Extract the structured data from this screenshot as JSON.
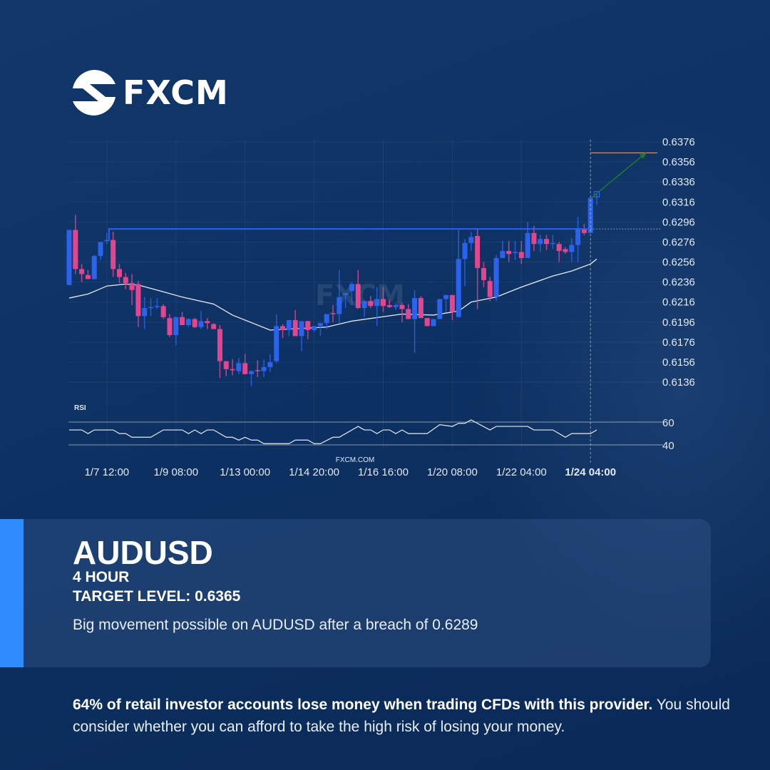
{
  "brand": {
    "name": "FXCM",
    "watermark": "FXCM",
    "site": "FXCM.COM"
  },
  "info": {
    "symbol": "AUDUSD",
    "timeframe": "4 HOUR",
    "target": "TARGET LEVEL: 0.6365",
    "description": "Big movement possible on AUDUSD after a breach of 0.6289"
  },
  "disclaimer": {
    "bold": "64% of retail investor accounts lose money when trading CFDs with this provider.",
    "rest": " You should consider whether you can afford to take the high risk of losing your money."
  },
  "colors": {
    "up": "#2b63ec",
    "down": "#e1468f",
    "breakout": "#2b63ec",
    "target": "#e8905a",
    "arrow": "#1f7a2e",
    "ma": "#e8ecf2",
    "accent": "#2f8cff"
  },
  "chart_data": {
    "type": "candlestick",
    "ylim": [
      0.6126,
      0.6386
    ],
    "y_ticks": [
      "0.6376",
      "0.6356",
      "0.6336",
      "0.6316",
      "0.6296",
      "0.6276",
      "0.6256",
      "0.6236",
      "0.6216",
      "0.6196",
      "0.6176",
      "0.6156",
      "0.6136"
    ],
    "x_ticks": [
      {
        "candle": 6,
        "label": "1/7 12:00"
      },
      {
        "candle": 17,
        "label": "1/9 08:00"
      },
      {
        "candle": 28,
        "label": "1/13 00:00"
      },
      {
        "candle": 39,
        "label": "1/14 20:00"
      },
      {
        "candle": 50,
        "label": "1/16 16:00"
      },
      {
        "candle": 61,
        "label": "1/20 08:00"
      },
      {
        "candle": 72,
        "label": "1/22 04:00"
      },
      {
        "candle": 83,
        "label": "1/24 04:00",
        "highlight": true
      }
    ],
    "ohlc": [
      [
        0.6233,
        0.6288,
        0.6233,
        0.6288
      ],
      [
        0.6288,
        0.6303,
        0.6244,
        0.6249
      ],
      [
        0.6249,
        0.6254,
        0.6236,
        0.6244
      ],
      [
        0.6243,
        0.6248,
        0.6239,
        0.6239
      ],
      [
        0.6239,
        0.6263,
        0.6238,
        0.6262
      ],
      [
        0.6262,
        0.6276,
        0.6258,
        0.6276
      ],
      [
        0.6277,
        0.6285,
        0.6274,
        0.6278
      ],
      [
        0.6278,
        0.6286,
        0.6241,
        0.6249
      ],
      [
        0.6249,
        0.6254,
        0.6235,
        0.6241
      ],
      [
        0.6241,
        0.6245,
        0.6229,
        0.6235
      ],
      [
        0.6235,
        0.6244,
        0.6213,
        0.6228
      ],
      [
        0.6234,
        0.6237,
        0.6191,
        0.6202
      ],
      [
        0.6202,
        0.6221,
        0.6189,
        0.621
      ],
      [
        0.621,
        0.622,
        0.6202,
        0.6211
      ],
      [
        0.6211,
        0.622,
        0.6209,
        0.6212
      ],
      [
        0.6212,
        0.6214,
        0.6199,
        0.6201
      ],
      [
        0.62,
        0.6204,
        0.6181,
        0.6183
      ],
      [
        0.6183,
        0.6201,
        0.6173,
        0.6201
      ],
      [
        0.6201,
        0.6206,
        0.6193,
        0.6193
      ],
      [
        0.6193,
        0.62,
        0.6191,
        0.6199
      ],
      [
        0.6199,
        0.62,
        0.619,
        0.6191
      ],
      [
        0.6191,
        0.6207,
        0.6189,
        0.6197
      ],
      [
        0.6197,
        0.62,
        0.6189,
        0.6195
      ],
      [
        0.6194,
        0.6195,
        0.6189,
        0.6189
      ],
      [
        0.6189,
        0.6193,
        0.614,
        0.6157
      ],
      [
        0.6157,
        0.6157,
        0.6142,
        0.6149
      ],
      [
        0.6149,
        0.6159,
        0.6143,
        0.6148
      ],
      [
        0.6147,
        0.616,
        0.6144,
        0.6155
      ],
      [
        0.6155,
        0.6164,
        0.6144,
        0.6144
      ],
      [
        0.6144,
        0.6148,
        0.6132,
        0.6147
      ],
      [
        0.6148,
        0.6158,
        0.6141,
        0.6147
      ],
      [
        0.6147,
        0.6159,
        0.6141,
        0.6151
      ],
      [
        0.6151,
        0.6164,
        0.6146,
        0.6156
      ],
      [
        0.6157,
        0.6204,
        0.6155,
        0.6192
      ],
      [
        0.6192,
        0.6194,
        0.618,
        0.6188
      ],
      [
        0.6188,
        0.6198,
        0.6182,
        0.6198
      ],
      [
        0.6198,
        0.6208,
        0.6182,
        0.6182
      ],
      [
        0.6182,
        0.6197,
        0.6167,
        0.6197
      ],
      [
        0.6197,
        0.6197,
        0.6179,
        0.6188
      ],
      [
        0.6188,
        0.6192,
        0.6186,
        0.6192
      ],
      [
        0.6192,
        0.6195,
        0.6182,
        0.6195
      ],
      [
        0.6195,
        0.6204,
        0.6189,
        0.6204
      ],
      [
        0.6205,
        0.6213,
        0.6196,
        0.6204
      ],
      [
        0.6204,
        0.6248,
        0.6195,
        0.6221
      ],
      [
        0.6223,
        0.6225,
        0.621,
        0.6225
      ],
      [
        0.6227,
        0.6236,
        0.6213,
        0.6234
      ],
      [
        0.6234,
        0.6248,
        0.6209,
        0.621
      ],
      [
        0.621,
        0.6217,
        0.6201,
        0.6217
      ],
      [
        0.6217,
        0.6222,
        0.621,
        0.6212
      ],
      [
        0.6212,
        0.6231,
        0.6192,
        0.6219
      ],
      [
        0.6219,
        0.6231,
        0.6206,
        0.6212
      ],
      [
        0.6213,
        0.6218,
        0.621,
        0.6211
      ],
      [
        0.6211,
        0.6215,
        0.6208,
        0.6213
      ],
      [
        0.6213,
        0.6215,
        0.6196,
        0.6209
      ],
      [
        0.6209,
        0.6214,
        0.6199,
        0.6199
      ],
      [
        0.6199,
        0.6228,
        0.6165,
        0.622
      ],
      [
        0.622,
        0.6222,
        0.62,
        0.62
      ],
      [
        0.62,
        0.62,
        0.6192,
        0.6192
      ],
      [
        0.6192,
        0.6199,
        0.6192,
        0.6199
      ],
      [
        0.6199,
        0.6219,
        0.6199,
        0.6219
      ],
      [
        0.6219,
        0.6223,
        0.6206,
        0.6223
      ],
      [
        0.6223,
        0.6223,
        0.6198,
        0.6206
      ],
      [
        0.6201,
        0.6288,
        0.6201,
        0.6259
      ],
      [
        0.6259,
        0.6279,
        0.6232,
        0.6275
      ],
      [
        0.6275,
        0.6286,
        0.6267,
        0.6281
      ],
      [
        0.6282,
        0.6289,
        0.6209,
        0.625
      ],
      [
        0.625,
        0.6256,
        0.6231,
        0.6238
      ],
      [
        0.6237,
        0.6241,
        0.6217,
        0.6221
      ],
      [
        0.6221,
        0.6263,
        0.6217,
        0.626
      ],
      [
        0.626,
        0.6277,
        0.626,
        0.6267
      ],
      [
        0.6267,
        0.6277,
        0.6256,
        0.6264
      ],
      [
        0.6265,
        0.6277,
        0.6258,
        0.6266
      ],
      [
        0.6266,
        0.6277,
        0.6254,
        0.626
      ],
      [
        0.626,
        0.6296,
        0.626,
        0.6285
      ],
      [
        0.6285,
        0.6292,
        0.6267,
        0.6274
      ],
      [
        0.6274,
        0.6283,
        0.6266,
        0.6279
      ],
      [
        0.6279,
        0.6283,
        0.6268,
        0.6274
      ],
      [
        0.6274,
        0.6283,
        0.6269,
        0.6275
      ],
      [
        0.6274,
        0.6276,
        0.6256,
        0.6267
      ],
      [
        0.6269,
        0.6271,
        0.6264,
        0.6266
      ],
      [
        0.6266,
        0.628,
        0.6256,
        0.6273
      ],
      [
        0.6273,
        0.6301,
        0.6256,
        0.6289
      ],
      [
        0.6289,
        0.6294,
        0.6283,
        0.6285
      ],
      [
        0.6285,
        0.632,
        0.6285,
        0.632
      ],
      [
        0.6321,
        0.6325,
        0.6313,
        0.6325
      ]
    ],
    "moving_average": [
      [
        0,
        0.622
      ],
      [
        3,
        0.6224
      ],
      [
        6,
        0.6232
      ],
      [
        9,
        0.6234
      ],
      [
        11,
        0.6233
      ],
      [
        14,
        0.6228
      ],
      [
        18,
        0.6221
      ],
      [
        23,
        0.6214
      ],
      [
        26,
        0.6203
      ],
      [
        32,
        0.6188
      ],
      [
        41,
        0.6191
      ],
      [
        45,
        0.6197
      ],
      [
        53,
        0.6204
      ],
      [
        58,
        0.6203
      ],
      [
        62,
        0.6207
      ],
      [
        64,
        0.6216
      ],
      [
        68,
        0.6221
      ],
      [
        72,
        0.6231
      ],
      [
        77,
        0.6242
      ],
      [
        80,
        0.6247
      ],
      [
        83,
        0.6254
      ],
      [
        84,
        0.6259
      ]
    ],
    "breakout_level": 0.6289,
    "breakout_start_candle": 6,
    "target_level": 0.6365,
    "current_candle": 83,
    "rsi": {
      "label": "RSI",
      "levels": [
        "60",
        "40"
      ],
      "ylim": [
        40,
        60
      ],
      "values": [
        [
          0,
          53.1
        ],
        [
          2,
          53.1
        ],
        [
          3,
          49.9
        ],
        [
          4,
          53.1
        ],
        [
          7,
          53.1
        ],
        [
          8,
          49.9
        ],
        [
          9,
          49.9
        ],
        [
          10,
          46.7
        ],
        [
          13,
          46.7
        ],
        [
          15,
          53.1
        ],
        [
          18,
          53.1
        ],
        [
          19,
          49.9
        ],
        [
          20,
          53.1
        ],
        [
          21,
          49.9
        ],
        [
          22,
          53.1
        ],
        [
          23,
          53.1
        ],
        [
          25,
          46.7
        ],
        [
          26,
          46.7
        ],
        [
          27,
          44.2
        ],
        [
          28,
          46.7
        ],
        [
          29,
          44.2
        ],
        [
          30,
          44.2
        ],
        [
          31,
          41.1
        ],
        [
          35,
          41.1
        ],
        [
          36,
          44.2
        ],
        [
          38,
          44.2
        ],
        [
          39,
          41.1
        ],
        [
          40,
          41.1
        ],
        [
          42,
          46.7
        ],
        [
          43,
          46.7
        ],
        [
          46,
          56.2
        ],
        [
          47,
          53.1
        ],
        [
          48,
          53.1
        ],
        [
          49,
          49.9
        ],
        [
          50,
          53.1
        ],
        [
          51,
          53.1
        ],
        [
          52,
          49.9
        ],
        [
          53,
          53.1
        ],
        [
          54,
          49.9
        ],
        [
          57,
          49.9
        ],
        [
          59,
          57.7
        ],
        [
          61,
          56.2
        ],
        [
          62,
          58.9
        ],
        [
          63,
          58.9
        ],
        [
          64,
          61.9
        ],
        [
          65,
          58.9
        ],
        [
          67,
          53.1
        ],
        [
          68,
          56.2
        ],
        [
          73,
          56.2
        ],
        [
          74,
          53.1
        ],
        [
          77,
          53.1
        ],
        [
          79,
          46.7
        ],
        [
          80,
          49.9
        ],
        [
          83,
          49.9
        ],
        [
          84,
          53.1
        ]
      ]
    }
  }
}
